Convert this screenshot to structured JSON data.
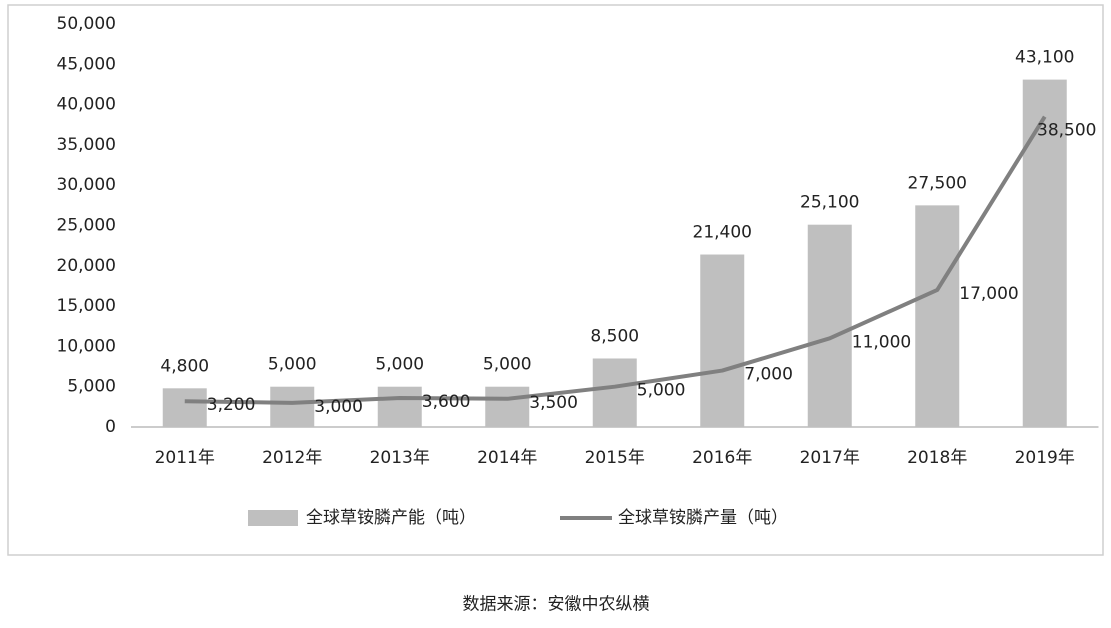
{
  "chart_data": {
    "type": "bar",
    "categories": [
      "2011年",
      "2012年",
      "2013年",
      "2014年",
      "2015年",
      "2016年",
      "2017年",
      "2018年",
      "2019年"
    ],
    "series": [
      {
        "name": "全球草铵膦产能（吨）",
        "type": "bar",
        "color": "#bfbfbf",
        "values": [
          4800,
          5000,
          5000,
          5000,
          8500,
          21400,
          25100,
          27500,
          43100
        ],
        "value_labels": [
          "4,800",
          "5,000",
          "5,000",
          "5,000",
          "8,500",
          "21,400",
          "25,100",
          "27,500",
          "43,100"
        ]
      },
      {
        "name": "全球草铵膦产量（吨）",
        "type": "line",
        "color": "#808080",
        "values": [
          3200,
          3000,
          3600,
          3500,
          5000,
          7000,
          11000,
          17000,
          38500
        ],
        "value_labels": [
          "3,200",
          "3,000",
          "3,600",
          "3,500",
          "5,000",
          "7,000",
          "11,000",
          "17,000",
          "38,500"
        ]
      }
    ],
    "ylim": [
      0,
      50000
    ],
    "yticks": [
      0,
      {
        "value": 5000,
        "label": "5,000"
      },
      {
        "value": 10000,
        "label": "10,000"
      },
      {
        "value": 15000,
        "label": "15,000"
      },
      {
        "value": 20000,
        "label": "20,000"
      },
      {
        "value": 25000,
        "label": "25,000"
      },
      {
        "value": 30000,
        "label": "30,000"
      },
      {
        "value": 35000,
        "label": "35,000"
      },
      {
        "value": 40000,
        "label": "40,000"
      },
      {
        "value": 45000,
        "label": "45,000"
      },
      {
        "value": 50000,
        "label": "50,000"
      }
    ],
    "grid": false,
    "legend": "bottom",
    "source": "数据来源：安徽中农纵横"
  }
}
